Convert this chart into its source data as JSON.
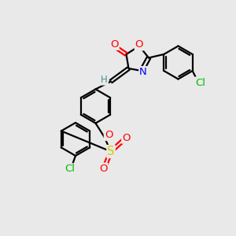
{
  "bg_color": "#e9e9e9",
  "bond_color": "#000000",
  "bond_lw": 1.6,
  "atom_colors": {
    "O": "#ff0000",
    "N": "#0000ff",
    "S": "#cccc00",
    "Cl": "#00bb00",
    "H": "#4a9090",
    "C": "#000000"
  },
  "font_size": 8.5,
  "xlim": [
    0,
    10
  ],
  "ylim": [
    0,
    10
  ]
}
